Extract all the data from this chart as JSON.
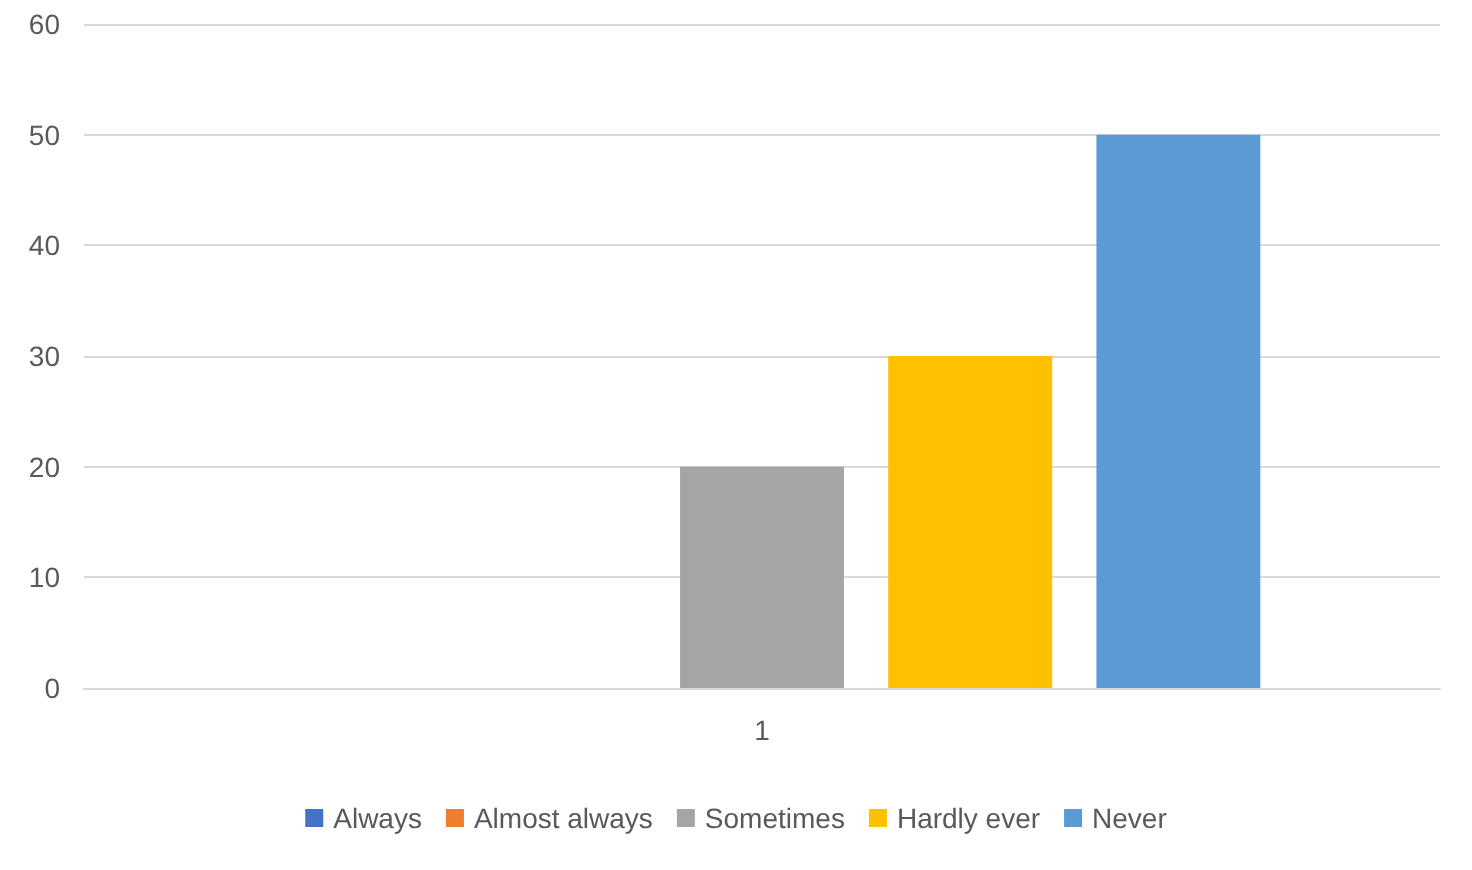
{
  "chart_data": {
    "type": "bar",
    "categories": [
      "1"
    ],
    "series": [
      {
        "name": "Always",
        "color": "#4472c4",
        "values": [
          0
        ]
      },
      {
        "name": "Almost always",
        "color": "#ed7d31",
        "values": [
          0
        ]
      },
      {
        "name": "Sometimes",
        "color": "#a5a5a5",
        "values": [
          20
        ]
      },
      {
        "name": "Hardly ever",
        "color": "#ffc000",
        "values": [
          30
        ]
      },
      {
        "name": "Never",
        "color": "#5b9bd5",
        "values": [
          50
        ]
      }
    ],
    "ylim": [
      0,
      60
    ],
    "yticks": [
      0,
      10,
      20,
      30,
      40,
      50,
      60
    ],
    "grid": "y",
    "legend": "bottom"
  }
}
